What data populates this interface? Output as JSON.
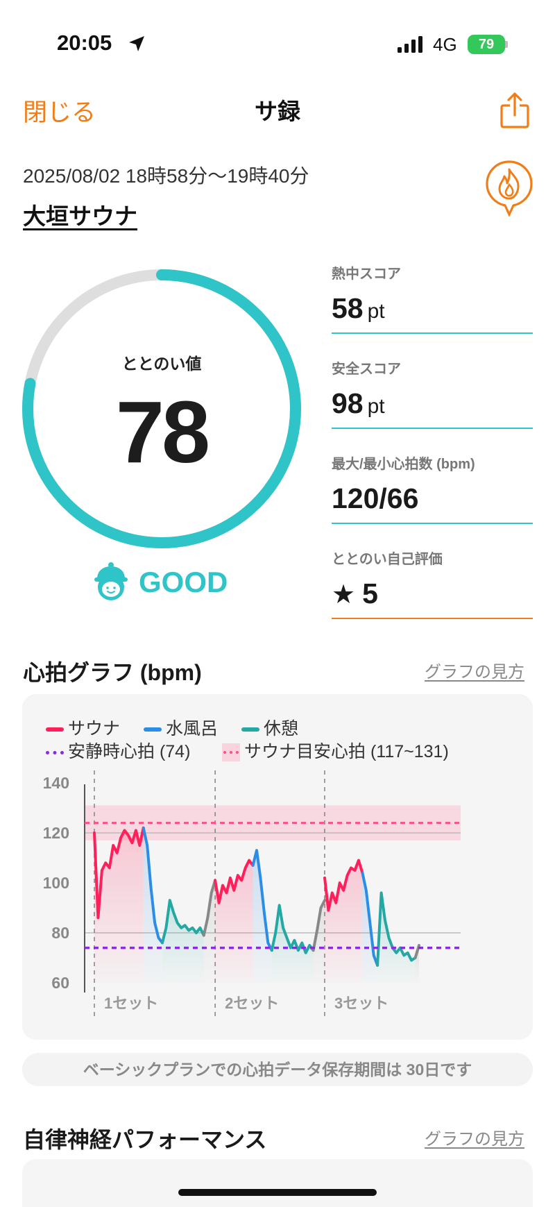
{
  "status_bar": {
    "time": "20:05",
    "network": "4G",
    "battery": "79"
  },
  "nav": {
    "close_label": "閉じる",
    "title": "サ録"
  },
  "session": {
    "datetime": "2025/08/02 18時58分〜19時40分",
    "facility": "大垣サウナ"
  },
  "score": {
    "label": "ととのい値",
    "value": "78",
    "rating": "GOOD",
    "progress_fraction": 0.78
  },
  "metrics": [
    {
      "label": "熱中スコア",
      "value": "58",
      "unit": "pt"
    },
    {
      "label": "安全スコア",
      "value": "98",
      "unit": "pt"
    },
    {
      "label": "最大/最小心拍数 (bpm)",
      "value": "120/66",
      "unit": ""
    },
    {
      "label": "ととのい自己評価",
      "value": "5",
      "unit": ""
    }
  ],
  "heart_section": {
    "title": "心拍グラフ (bpm)",
    "link": "グラフの見方"
  },
  "legend": {
    "sauna": "サウナ",
    "cold_bath": "水風呂",
    "rest": "休憩",
    "resting_hr": "安静時心拍 (74)",
    "sauna_target": "サウナ目安心拍 (117~131)"
  },
  "colors": {
    "accent_orange": "#f07d15",
    "teal": "#2ec4c8",
    "sauna": "#ff1f5a",
    "cold": "#2b8de6",
    "rest": "#23a8a3",
    "resting": "#8a2be2",
    "target": "#ff4f86"
  },
  "chart_data": {
    "type": "line",
    "ylim": [
      60,
      140
    ],
    "yticks": [
      "140",
      "120",
      "100",
      "80",
      "60"
    ],
    "resting_hr": 74,
    "target_range": [
      117,
      131
    ],
    "target_line": 124,
    "set_labels": [
      "1セット",
      "2セット",
      "3セット"
    ],
    "series": [
      {
        "name": "サウナ",
        "phase": "sauna",
        "set": 1,
        "values": [
          120,
          86,
          105,
          108,
          106,
          115,
          112,
          118,
          121,
          119,
          116,
          121,
          115,
          122
        ]
      },
      {
        "name": "水風呂",
        "phase": "cold",
        "set": 1,
        "values": [
          122,
          115,
          98,
          84,
          78,
          76
        ]
      },
      {
        "name": "休憩",
        "phase": "rest",
        "set": 1,
        "values": [
          76,
          82,
          93,
          88,
          84,
          82,
          83,
          81,
          82,
          80,
          82,
          79
        ]
      },
      {
        "name": "",
        "phase": "transition",
        "set": 1,
        "values": [
          79,
          86,
          96,
          101
        ]
      },
      {
        "name": "サウナ",
        "phase": "sauna",
        "set": 2,
        "values": [
          101,
          92,
          99,
          96,
          102,
          97,
          103,
          101,
          106,
          109,
          107
        ]
      },
      {
        "name": "水風呂",
        "phase": "cold",
        "set": 2,
        "values": [
          107,
          113,
          102,
          88,
          76,
          73
        ]
      },
      {
        "name": "休憩",
        "phase": "rest",
        "set": 2,
        "values": [
          73,
          80,
          91,
          82,
          78,
          74,
          77,
          73,
          76,
          72,
          75,
          73
        ]
      },
      {
        "name": "",
        "phase": "transition",
        "set": 2,
        "values": [
          73,
          81,
          90,
          93
        ]
      },
      {
        "name": "サウナ",
        "phase": "sauna",
        "set": 3,
        "values": [
          102,
          89,
          96,
          92,
          100,
          97,
          103,
          106,
          105,
          109,
          104
        ]
      },
      {
        "name": "水風呂",
        "phase": "cold",
        "set": 3,
        "values": [
          104,
          97,
          84,
          71,
          67
        ]
      },
      {
        "name": "休憩",
        "phase": "rest",
        "set": 3,
        "values": [
          67,
          96,
          85,
          78,
          74,
          72,
          74,
          71,
          72,
          69,
          70
        ]
      },
      {
        "name": "",
        "phase": "transition",
        "set": 3,
        "values": [
          70,
          75
        ]
      }
    ]
  },
  "notice": "ベーシックプランでの心拍データ保存期間は 30日です",
  "autonomic_section": {
    "title": "自律神経パフォーマンス",
    "link": "グラフの見方"
  }
}
